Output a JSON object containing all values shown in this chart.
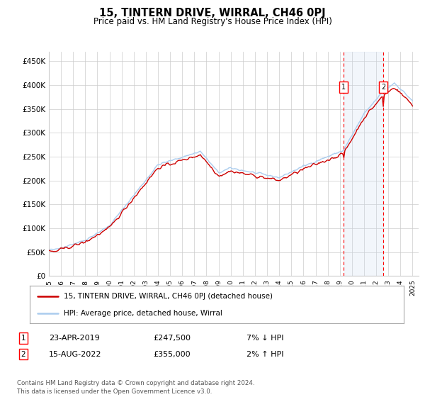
{
  "title": "15, TINTERN DRIVE, WIRRAL, CH46 0PJ",
  "subtitle": "Price paid vs. HM Land Registry's House Price Index (HPI)",
  "ylabel_ticks": [
    "£0",
    "£50K",
    "£100K",
    "£150K",
    "£200K",
    "£250K",
    "£300K",
    "£350K",
    "£400K",
    "£450K"
  ],
  "ytick_values": [
    0,
    50000,
    100000,
    150000,
    200000,
    250000,
    300000,
    350000,
    400000,
    450000
  ],
  "ylim": [
    0,
    470000
  ],
  "xlim_start": 1995.0,
  "xlim_end": 2025.5,
  "hpi_color": "#aaccee",
  "price_color": "#cc0000",
  "marker1_date": 2019.3,
  "marker1_price": 247500,
  "marker2_date": 2022.6,
  "marker2_price": 355000,
  "annotation1": "1",
  "annotation2": "2",
  "legend_line1": "15, TINTERN DRIVE, WIRRAL, CH46 0PJ (detached house)",
  "legend_line2": "HPI: Average price, detached house, Wirral",
  "table_row1_num": "1",
  "table_row1_date": "23-APR-2019",
  "table_row1_price": "£247,500",
  "table_row1_hpi": "7% ↓ HPI",
  "table_row2_num": "2",
  "table_row2_date": "15-AUG-2022",
  "table_row2_price": "£355,000",
  "table_row2_hpi": "2% ↑ HPI",
  "footer": "Contains HM Land Registry data © Crown copyright and database right 2024.\nThis data is licensed under the Open Government Licence v3.0.",
  "background_color": "#ffffff",
  "grid_color": "#cccccc",
  "shading_color": "#ccddf0"
}
